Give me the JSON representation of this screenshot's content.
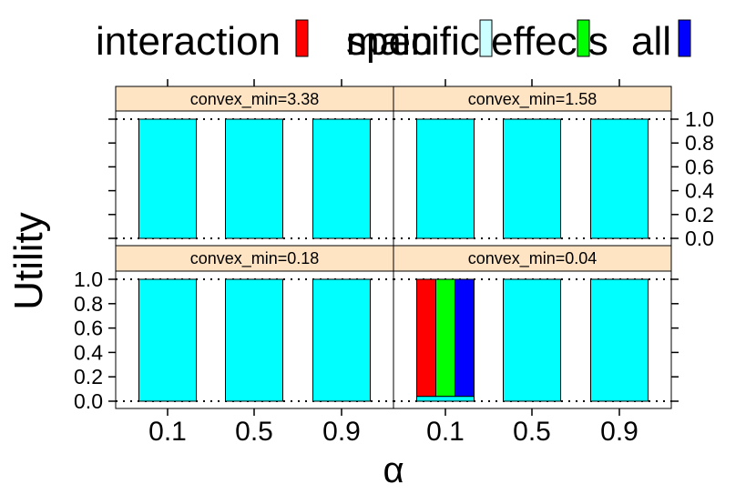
{
  "chart_data": {
    "type": "bar",
    "layout": "trellis 2x2",
    "xlabel": "α",
    "ylabel": "Utility",
    "categories": [
      "0.1",
      "0.5",
      "0.9"
    ],
    "yticks": [
      "0.0",
      "0.2",
      "0.4",
      "0.6",
      "0.8",
      "1.0"
    ],
    "ylim": [
      0,
      1
    ],
    "reference_lines": [
      0,
      1
    ],
    "legend": [
      {
        "label": "interaction",
        "color": "#ff0000"
      },
      {
        "label": "specific effects",
        "color": "#ccffff"
      },
      {
        "label": "main",
        "color": "#00ff00"
      },
      {
        "label": "all",
        "color": "#0000ff"
      }
    ],
    "panels": [
      {
        "strip": "convex_min=3.38",
        "bars": [
          {
            "category": "0.1",
            "segments": [
              {
                "series": "specific effects",
                "value": 1.0,
                "color": "#00ffff"
              }
            ]
          },
          {
            "category": "0.5",
            "segments": [
              {
                "series": "specific effects",
                "value": 1.0,
                "color": "#00ffff"
              }
            ]
          },
          {
            "category": "0.9",
            "segments": [
              {
                "series": "specific effects",
                "value": 1.0,
                "color": "#00ffff"
              }
            ]
          }
        ]
      },
      {
        "strip": "convex_min=1.58",
        "bars": [
          {
            "category": "0.1",
            "segments": [
              {
                "series": "specific effects",
                "value": 1.0,
                "color": "#00ffff"
              }
            ]
          },
          {
            "category": "0.5",
            "segments": [
              {
                "series": "specific effects",
                "value": 1.0,
                "color": "#00ffff"
              }
            ]
          },
          {
            "category": "0.9",
            "segments": [
              {
                "series": "specific effects",
                "value": 1.0,
                "color": "#00ffff"
              }
            ]
          }
        ]
      },
      {
        "strip": "convex_min=0.18",
        "bars": [
          {
            "category": "0.1",
            "segments": [
              {
                "series": "specific effects",
                "value": 1.0,
                "color": "#00ffff"
              }
            ]
          },
          {
            "category": "0.5",
            "segments": [
              {
                "series": "specific effects",
                "value": 1.0,
                "color": "#00ffff"
              }
            ]
          },
          {
            "category": "0.9",
            "segments": [
              {
                "series": "specific effects",
                "value": 1.0,
                "color": "#00ffff"
              }
            ]
          }
        ]
      },
      {
        "strip": "convex_min=0.04",
        "bars": [
          {
            "category": "0.1",
            "segments": [
              {
                "series": "specific effects",
                "value": 0.04,
                "color": "#00ffff"
              },
              {
                "series": "interaction",
                "value": 1.0,
                "color": "#ff0000",
                "sub": 0
              },
              {
                "series": "main",
                "value": 1.0,
                "color": "#00ff00",
                "sub": 1
              },
              {
                "series": "all",
                "value": 1.0,
                "color": "#0000ff",
                "sub": 2
              }
            ]
          },
          {
            "category": "0.5",
            "segments": [
              {
                "series": "specific effects",
                "value": 1.0,
                "color": "#00ffff"
              }
            ]
          },
          {
            "category": "0.9",
            "segments": [
              {
                "series": "specific effects",
                "value": 1.0,
                "color": "#00ffff"
              }
            ]
          }
        ]
      }
    ]
  }
}
